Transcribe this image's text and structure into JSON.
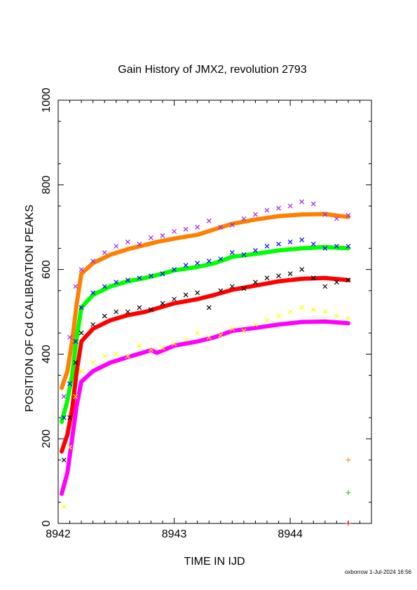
{
  "chart_data": {
    "type": "scatter",
    "title": "Gain History of JMX2, revolution 2793",
    "xlabel": "TIME IN IJD",
    "ylabel": "POSITION OF Cd CALIBRATION PEAKS",
    "xlim": [
      8942.0,
      8944.7
    ],
    "ylim": [
      0,
      1000
    ],
    "x_ticks": [
      8942,
      8943,
      8944
    ],
    "x_tick_labels": [
      "8942",
      "8943",
      "8944"
    ],
    "y_ticks": [
      0,
      200,
      400,
      600,
      800,
      1000
    ],
    "y_tick_labels": [
      "0",
      "200",
      "400",
      "600",
      "800",
      "1000"
    ],
    "grid": false,
    "legend": "none",
    "footer": "oxborrow  1-Jul-2024 16:56",
    "series": [
      {
        "color": "#ff8000",
        "style": "fit-curve",
        "x": [
          8942.03,
          8942.08,
          8942.12,
          8942.16,
          8942.2,
          8942.3,
          8942.45,
          8942.6,
          8942.75,
          8942.85,
          8943.0,
          8943.2,
          8943.35,
          8943.5,
          8943.7,
          8943.9,
          8944.1,
          8944.3,
          8944.5
        ],
        "y": [
          320,
          360,
          430,
          520,
          590,
          615,
          635,
          648,
          658,
          665,
          673,
          682,
          695,
          708,
          718,
          726,
          730,
          731,
          724
        ]
      },
      {
        "color": "#a020f0",
        "style": "scatter-x",
        "x": [
          8942.05,
          8942.1,
          8942.15,
          8942.2,
          8942.3,
          8942.4,
          8942.5,
          8942.6,
          8942.7,
          8942.8,
          8942.9,
          8943.0,
          8943.1,
          8943.2,
          8943.3,
          8943.4,
          8943.5,
          8943.6,
          8943.7,
          8943.8,
          8943.9,
          8944.0,
          8944.1,
          8944.2,
          8944.3,
          8944.4,
          8944.5
        ],
        "y": [
          300,
          440,
          560,
          600,
          620,
          640,
          655,
          665,
          660,
          675,
          680,
          690,
          695,
          700,
          715,
          700,
          705,
          720,
          730,
          740,
          745,
          750,
          760,
          755,
          730,
          720,
          728
        ]
      },
      {
        "color": "#00ff00",
        "style": "fit-curve",
        "x": [
          8942.03,
          8942.08,
          8942.12,
          8942.16,
          8942.2,
          8942.3,
          8942.45,
          8942.6,
          8942.75,
          8942.9,
          8943.0,
          8943.2,
          8943.35,
          8943.5,
          8943.7,
          8943.9,
          8944.1,
          8944.3,
          8944.5
        ],
        "y": [
          240,
          290,
          350,
          440,
          510,
          540,
          560,
          572,
          580,
          590,
          598,
          606,
          615,
          630,
          637,
          645,
          650,
          653,
          650
        ]
      },
      {
        "color": "#0000ff",
        "style": "scatter-x",
        "x": [
          8942.05,
          8942.1,
          8942.15,
          8942.2,
          8942.3,
          8942.4,
          8942.5,
          8942.6,
          8942.7,
          8942.8,
          8942.9,
          8943.0,
          8943.1,
          8943.2,
          8943.3,
          8943.4,
          8943.5,
          8943.6,
          8943.7,
          8943.8,
          8943.9,
          8944.0,
          8944.1,
          8944.2,
          8944.3,
          8944.4,
          8944.5
        ],
        "y": [
          250,
          330,
          430,
          510,
          545,
          560,
          570,
          575,
          580,
          585,
          590,
          600,
          610,
          615,
          620,
          625,
          640,
          635,
          645,
          655,
          660,
          665,
          670,
          660,
          650,
          655,
          655
        ]
      },
      {
        "color": "#ff0000",
        "style": "fit-curve",
        "x": [
          8942.03,
          8942.08,
          8942.12,
          8942.16,
          8942.2,
          8942.3,
          8942.45,
          8942.6,
          8942.75,
          8942.9,
          8943.0,
          8943.2,
          8943.35,
          8943.5,
          8943.7,
          8943.9,
          8944.1,
          8944.3,
          8944.5
        ],
        "y": [
          170,
          210,
          270,
          360,
          430,
          460,
          480,
          492,
          500,
          512,
          520,
          530,
          540,
          552,
          562,
          572,
          578,
          580,
          575
        ]
      },
      {
        "color": "#000000",
        "style": "scatter-x",
        "x": [
          8942.05,
          8942.1,
          8942.15,
          8942.2,
          8942.3,
          8942.4,
          8942.5,
          8942.6,
          8942.7,
          8942.8,
          8942.9,
          8943.0,
          8943.1,
          8943.2,
          8943.3,
          8943.4,
          8943.5,
          8943.6,
          8943.7,
          8943.8,
          8943.9,
          8944.0,
          8944.1,
          8944.2,
          8944.3,
          8944.4,
          8944.5
        ],
        "y": [
          150,
          250,
          380,
          450,
          470,
          490,
          500,
          500,
          510,
          505,
          520,
          530,
          540,
          545,
          510,
          550,
          560,
          555,
          570,
          580,
          585,
          590,
          600,
          580,
          560,
          570,
          575
        ]
      },
      {
        "color": "#ff00ff",
        "style": "fit-curve",
        "x": [
          8942.03,
          8942.08,
          8942.12,
          8942.16,
          8942.2,
          8942.3,
          8942.45,
          8942.6,
          8942.75,
          8942.8,
          8942.85,
          8943.0,
          8943.2,
          8943.35,
          8943.5,
          8943.7,
          8943.9,
          8944.1,
          8944.3,
          8944.5
        ],
        "y": [
          70,
          120,
          200,
          280,
          335,
          360,
          380,
          393,
          405,
          410,
          403,
          420,
          430,
          440,
          455,
          462,
          470,
          476,
          477,
          473
        ]
      },
      {
        "color": "#ffff00",
        "style": "scatter-x",
        "x": [
          8942.05,
          8942.1,
          8942.15,
          8942.2,
          8942.3,
          8942.4,
          8942.5,
          8942.6,
          8942.7,
          8942.8,
          8942.9,
          8943.0,
          8943.1,
          8943.2,
          8943.3,
          8943.4,
          8943.5,
          8943.6,
          8943.7,
          8943.8,
          8943.9,
          8944.0,
          8944.1,
          8944.2,
          8944.3,
          8944.4,
          8944.5
        ],
        "y": [
          40,
          180,
          300,
          360,
          380,
          395,
          400,
          395,
          420,
          410,
          415,
          425,
          435,
          450,
          440,
          445,
          460,
          455,
          470,
          480,
          490,
          500,
          510,
          505,
          500,
          490,
          485
        ]
      }
    ],
    "side_markers": [
      {
        "symbol": "+",
        "color": "#ff8000",
        "x": 8944.5,
        "y": 150
      },
      {
        "symbol": "+",
        "color": "#00cc00",
        "x": 8944.5,
        "y": 73
      },
      {
        "symbol": "+",
        "color": "#ff0000",
        "x": 8944.5,
        "y": 0
      }
    ]
  }
}
